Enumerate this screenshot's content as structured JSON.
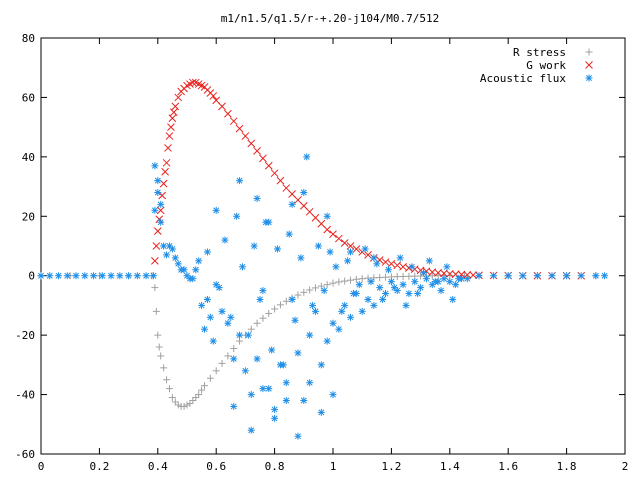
{
  "chart_data": {
    "type": "scatter",
    "title": "m1/n1.5/q1.5/r-+.20-j104/M0.7/512",
    "xlabel": "",
    "ylabel": "",
    "xlim": [
      0,
      2
    ],
    "ylim": [
      -60,
      80
    ],
    "xticks": [
      "0",
      "0.2",
      "0.4",
      "0.6",
      "0.8",
      "1",
      "1.2",
      "1.4",
      "1.6",
      "1.8",
      "2"
    ],
    "yticks": [
      "-60",
      "-40",
      "-20",
      "0",
      "20",
      "40",
      "60",
      "80"
    ],
    "legend_position": "top-right",
    "grid": false,
    "series": [
      {
        "name": "R stress",
        "marker": "plus",
        "color": "#a0a0a0",
        "x": [
          0.0,
          0.1,
          0.2,
          0.3,
          0.38,
          0.39,
          0.395,
          0.4,
          0.405,
          0.41,
          0.42,
          0.43,
          0.44,
          0.45,
          0.46,
          0.47,
          0.48,
          0.49,
          0.5,
          0.51,
          0.52,
          0.53,
          0.54,
          0.55,
          0.56,
          0.58,
          0.6,
          0.62,
          0.64,
          0.66,
          0.68,
          0.7,
          0.72,
          0.74,
          0.76,
          0.78,
          0.8,
          0.82,
          0.84,
          0.86,
          0.88,
          0.9,
          0.92,
          0.94,
          0.96,
          0.98,
          1.0,
          1.02,
          1.04,
          1.06,
          1.08,
          1.1,
          1.12,
          1.14,
          1.16,
          1.18,
          1.2,
          1.22,
          1.24,
          1.26,
          1.28,
          1.3,
          1.32,
          1.34,
          1.36,
          1.38,
          1.4,
          1.45,
          1.5,
          1.6,
          1.7,
          1.8,
          1.9
        ],
        "y": [
          0,
          0,
          0,
          0,
          0,
          -4,
          -12,
          -20,
          -24,
          -27,
          -31,
          -35,
          -38,
          -41,
          -42.5,
          -43.5,
          -44,
          -44,
          -43.5,
          -43,
          -42,
          -41,
          -40,
          -38.5,
          -37,
          -34.5,
          -32,
          -29.5,
          -27,
          -24.5,
          -22,
          -20,
          -18,
          -16,
          -14.3,
          -12.7,
          -11.2,
          -9.8,
          -8.6,
          -7.5,
          -6.5,
          -5.6,
          -4.8,
          -4.1,
          -3.5,
          -3.0,
          -2.5,
          -2.1,
          -1.8,
          -1.5,
          -1.2,
          -1.0,
          -0.8,
          -0.7,
          -0.6,
          -0.5,
          -0.4,
          -0.3,
          -0.25,
          -0.2,
          -0.15,
          -0.1,
          -0.1,
          -0.05,
          0,
          0,
          0,
          0,
          0,
          0,
          0,
          0,
          0
        ]
      },
      {
        "name": "G work",
        "marker": "cross",
        "color": "#e8231e",
        "x": [
          0.39,
          0.395,
          0.4,
          0.405,
          0.41,
          0.415,
          0.42,
          0.425,
          0.43,
          0.435,
          0.44,
          0.445,
          0.45,
          0.455,
          0.46,
          0.47,
          0.48,
          0.49,
          0.5,
          0.51,
          0.52,
          0.53,
          0.54,
          0.55,
          0.56,
          0.57,
          0.58,
          0.59,
          0.6,
          0.62,
          0.64,
          0.66,
          0.68,
          0.7,
          0.72,
          0.74,
          0.76,
          0.78,
          0.8,
          0.82,
          0.84,
          0.86,
          0.88,
          0.9,
          0.92,
          0.94,
          0.96,
          0.98,
          1.0,
          1.02,
          1.04,
          1.06,
          1.08,
          1.1,
          1.12,
          1.14,
          1.16,
          1.18,
          1.2,
          1.22,
          1.24,
          1.26,
          1.28,
          1.3,
          1.32,
          1.34,
          1.36,
          1.38,
          1.4,
          1.42,
          1.44,
          1.46,
          1.48,
          1.5,
          1.55,
          1.6,
          1.65,
          1.7,
          1.75,
          1.8,
          1.85
        ],
        "y": [
          5,
          10,
          15,
          19,
          22,
          27,
          31,
          35,
          38,
          43,
          47,
          50,
          53,
          55,
          57,
          60,
          62,
          63,
          64,
          64.5,
          65,
          65,
          64.5,
          64,
          63.5,
          62.5,
          61.5,
          60.5,
          59,
          57,
          54.5,
          52,
          49.5,
          47,
          44.5,
          42,
          39.5,
          37,
          34.5,
          32,
          29.5,
          27.5,
          25.5,
          23.5,
          21.5,
          19.5,
          17.5,
          15.5,
          14,
          12.5,
          11,
          10,
          9,
          8,
          7,
          6,
          5.3,
          4.6,
          4,
          3.5,
          3,
          2.6,
          2.2,
          1.8,
          1.5,
          1.2,
          1,
          0.8,
          0.6,
          0.5,
          0.4,
          0.3,
          0.2,
          0.15,
          0.1,
          0.05,
          0,
          0,
          0,
          0,
          0
        ]
      },
      {
        "name": "Acoustic flux",
        "marker": "star",
        "color": "#1f8fe8",
        "x": [
          0.0,
          0.03,
          0.06,
          0.09,
          0.12,
          0.15,
          0.18,
          0.21,
          0.24,
          0.27,
          0.3,
          0.33,
          0.36,
          0.385,
          0.39,
          0.39,
          0.4,
          0.4,
          0.41,
          0.41,
          0.42,
          0.43,
          0.44,
          0.45,
          0.46,
          0.47,
          0.48,
          0.49,
          0.5,
          0.51,
          0.52,
          0.53,
          0.55,
          0.56,
          0.57,
          0.58,
          0.59,
          0.6,
          0.62,
          0.64,
          0.66,
          0.68,
          0.7,
          0.72,
          0.74,
          0.76,
          0.78,
          0.8,
          0.82,
          0.84,
          0.86,
          0.88,
          0.9,
          0.92,
          0.94,
          0.96,
          0.98,
          1.0,
          1.02,
          1.04,
          1.06,
          1.08,
          1.1,
          1.12,
          1.14,
          1.16,
          1.18,
          1.2,
          1.22,
          1.24,
          1.26,
          1.28,
          1.3,
          1.32,
          1.34,
          1.36,
          1.38,
          1.4,
          1.42,
          1.44,
          1.46,
          1.5,
          1.55,
          1.6,
          1.65,
          1.7,
          1.75,
          1.8,
          1.85,
          1.9,
          1.93,
          0.54,
          0.57,
          0.61,
          0.63,
          0.65,
          0.67,
          0.69,
          0.71,
          0.73,
          0.75,
          0.77,
          0.79,
          0.81,
          0.83,
          0.85,
          0.87,
          0.89,
          0.91,
          0.93,
          0.95,
          0.97,
          0.99,
          1.01,
          1.03,
          1.05,
          1.07,
          1.09,
          1.11,
          1.13,
          1.15,
          1.17,
          1.19,
          1.21,
          1.23,
          1.25,
          1.27,
          1.29,
          1.31,
          1.33,
          1.35,
          1.37,
          1.39,
          1.41,
          1.43,
          0.66,
          0.72,
          0.76,
          0.8,
          0.84,
          0.88,
          0.92,
          0.96,
          1.0,
          0.6,
          0.68,
          0.74,
          0.78,
          0.86,
          0.9,
          0.98,
          1.06,
          1.14
        ],
        "y": [
          0,
          0,
          0,
          0,
          0,
          0,
          0,
          0,
          0,
          0,
          0,
          0,
          0,
          0,
          22,
          37,
          32,
          28,
          24,
          18,
          10,
          7,
          10,
          9,
          6,
          4,
          2,
          2,
          0,
          -1,
          -1,
          2,
          -10,
          -18,
          -8,
          -14,
          -22,
          -3,
          -12,
          -16,
          -28,
          -20,
          -32,
          -40,
          -28,
          -5,
          -38,
          -45,
          -30,
          -36,
          -8,
          -26,
          -42,
          -20,
          -12,
          -30,
          -22,
          -16,
          -18,
          -10,
          -14,
          -6,
          -12,
          -8,
          -10,
          -4,
          -6,
          -2,
          -5,
          -3,
          -6,
          -2,
          -4,
          -1,
          -3,
          -2,
          -1,
          -2,
          -3,
          -1,
          -1,
          0,
          0,
          0,
          0,
          0,
          0,
          0,
          0,
          0,
          0,
          5,
          8,
          -4,
          12,
          -14,
          20,
          3,
          -20,
          10,
          -8,
          18,
          -25,
          9,
          -30,
          14,
          -15,
          6,
          40,
          -10,
          10,
          -5,
          8,
          3,
          -12,
          5,
          -6,
          -3,
          9,
          -2,
          4,
          -8,
          2,
          -4,
          6,
          -10,
          3,
          -6,
          1,
          5,
          -2,
          -5,
          3,
          -8,
          -1,
          -44,
          -52,
          -38,
          -48,
          -42,
          -54,
          -36,
          -46,
          -40,
          22,
          32,
          26,
          18,
          24,
          28,
          20,
          8,
          6
        ]
      }
    ]
  }
}
